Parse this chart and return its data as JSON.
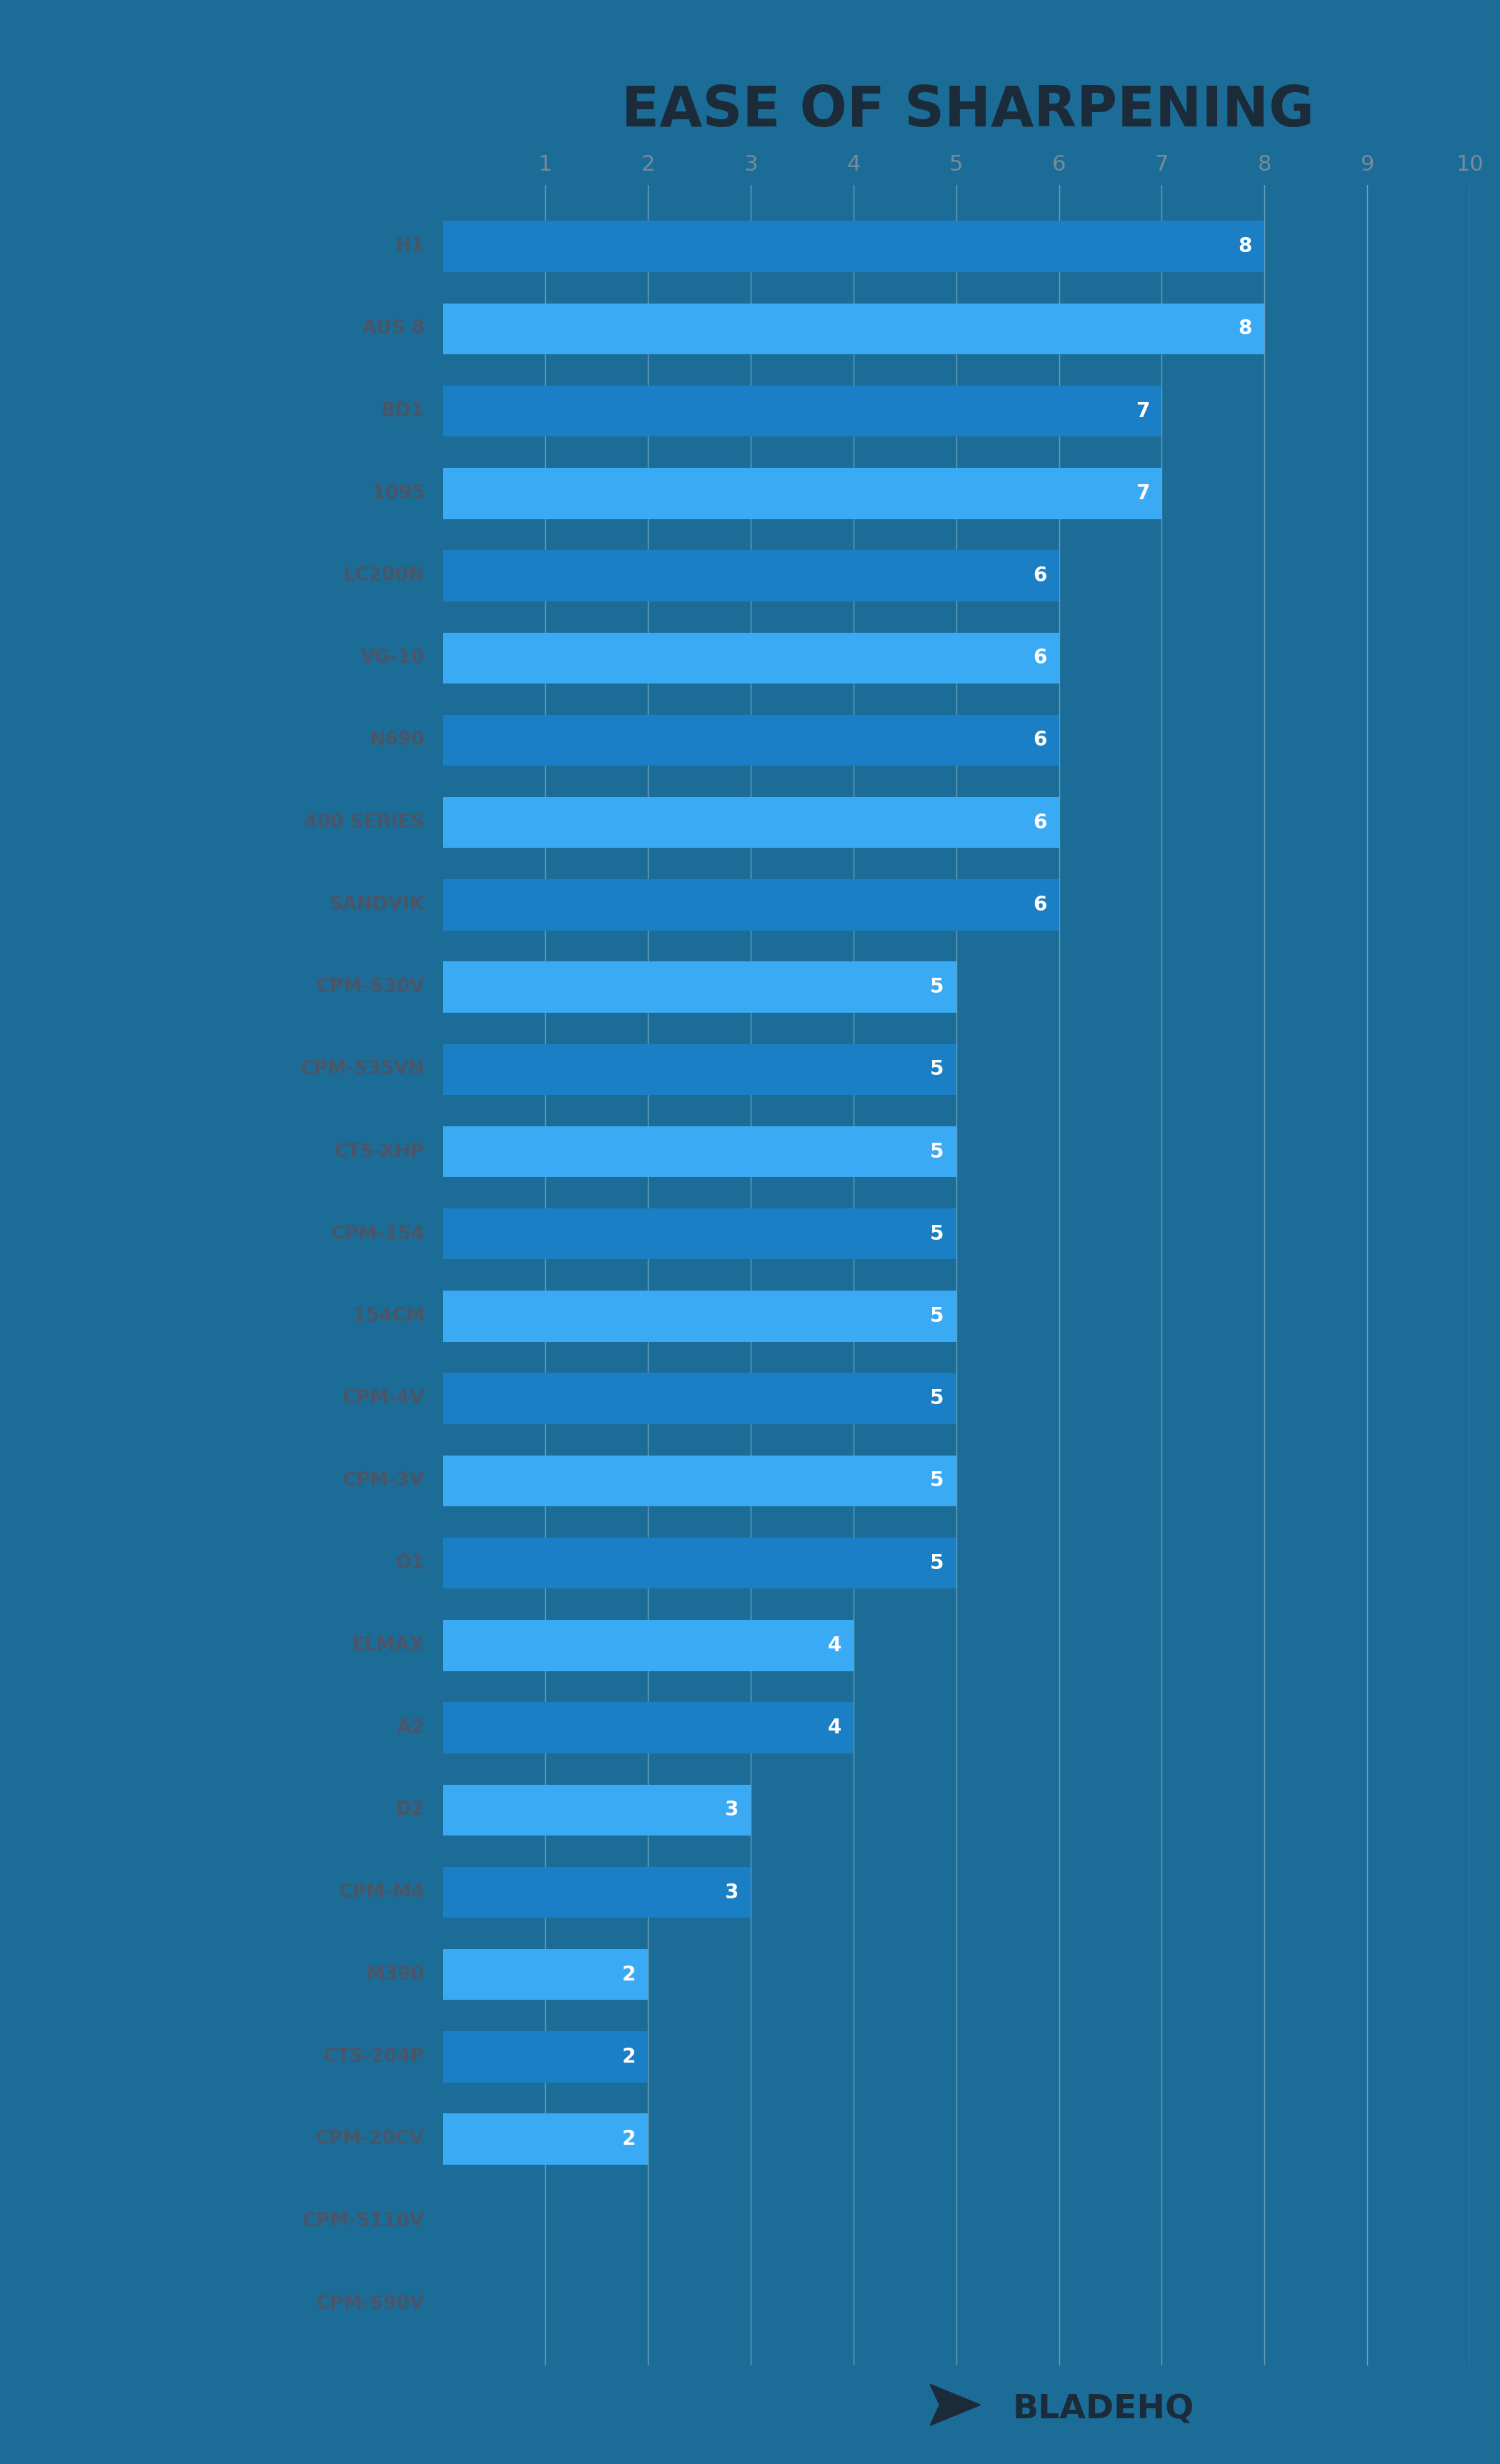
{
  "title": "EASE OF SHARPENING",
  "background_color": "#1b6d97",
  "title_color": "#1c2b3a",
  "label_color": "#4a5568",
  "axis_tick_color": "#7a8a9a",
  "grid_color": "#ffffff",
  "categories": [
    "H1",
    "AUS 8",
    "BD1",
    "1095",
    "LC200N",
    "VG-10",
    "N690",
    "400 SERIES",
    "SANDVIK",
    "CPM-S30V",
    "CPM-S35VN",
    "CTS-XHP",
    "CPM-154",
    "154CM",
    "CPM-4V",
    "CPM-3V",
    "O1",
    "ELMAX",
    "A2",
    "D2",
    "CPM-M4",
    "M390",
    "CTS-204P",
    "CPM-20CV",
    "CPM-S110V",
    "CPM-S90V"
  ],
  "values": [
    8,
    8,
    7,
    7,
    6,
    6,
    6,
    6,
    6,
    5,
    5,
    5,
    5,
    5,
    5,
    5,
    5,
    4,
    4,
    3,
    3,
    2,
    2,
    2,
    0,
    0
  ],
  "bar_colors": [
    "#1a7fc4",
    "#3baaf5",
    "#1a7fc4",
    "#3baaf5",
    "#1a7fc4",
    "#3baaf5",
    "#1a7fc4",
    "#3baaf5",
    "#1a7fc4",
    "#3baaf5",
    "#1a7fc4",
    "#3baaf5",
    "#1a7fc4",
    "#3baaf5",
    "#1a7fc4",
    "#3baaf5",
    "#1a7fc4",
    "#3baaf5",
    "#1a7fc4",
    "#3baaf5",
    "#1a7fc4",
    "#3baaf5",
    "#1a7fc4",
    "#3baaf5",
    "#1a7fc4",
    "#3baaf5"
  ],
  "xlim": [
    0,
    10
  ],
  "logo_text": "BLADEHQ",
  "logo_color": "#1c2b3a"
}
